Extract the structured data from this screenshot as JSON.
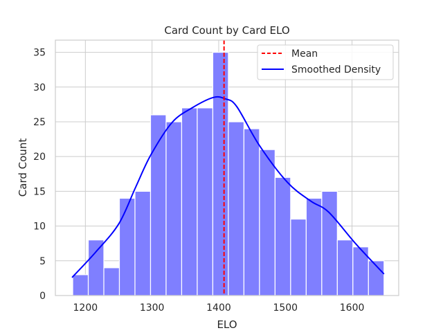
{
  "chart_data": {
    "type": "bar",
    "title": "Card Count by Card ELO",
    "xlabel": "ELO",
    "ylabel": "Card Count",
    "xlim": [
      1155,
      1670
    ],
    "ylim": [
      0,
      36.75
    ],
    "grid": true,
    "xticks": [
      1200,
      1300,
      1400,
      1500,
      1600
    ],
    "yticks": [
      0,
      5,
      10,
      15,
      20,
      25,
      30,
      35
    ],
    "bins": {
      "start": 1181,
      "width": 23.35
    },
    "values": [
      3,
      8,
      4,
      14,
      15,
      26,
      25,
      27,
      27,
      35,
      25,
      24,
      21,
      17,
      11,
      14,
      15,
      8,
      7,
      5
    ],
    "bar_color": "#7f7fff",
    "mean": {
      "label": "Mean",
      "value": 1408,
      "color": "#ff0000"
    },
    "density": {
      "label": "Smoothed Density",
      "color": "#0000ff",
      "x": [
        1180,
        1215,
        1250,
        1275,
        1298,
        1330,
        1360,
        1392,
        1410,
        1427,
        1461,
        1503,
        1538,
        1565,
        1606,
        1648
      ],
      "y": [
        2.6,
        6.2,
        10.3,
        15.5,
        20.2,
        24.9,
        27.0,
        28.5,
        28.3,
        27.2,
        21.6,
        16.3,
        13.6,
        12.0,
        7.4,
        3.1
      ]
    },
    "legend": "top-right"
  }
}
